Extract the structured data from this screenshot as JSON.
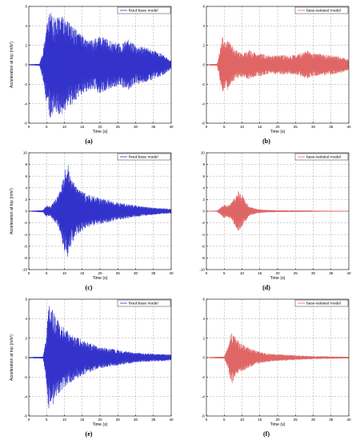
{
  "chart_data": [
    {
      "id": "a",
      "type": "line",
      "label": "(a)",
      "xlabel": "Time (s)",
      "ylabel": "Acceleration at top (m/s²)",
      "xlim": [
        0,
        40
      ],
      "ylim": [
        -6,
        6
      ],
      "xticks": [
        0,
        5,
        10,
        15,
        20,
        25,
        30,
        35,
        40
      ],
      "yticks": [
        -6,
        -4,
        -2,
        0,
        2,
        4,
        6
      ],
      "grid": true,
      "legend_position": "top-right",
      "series": [
        {
          "name": "fixed-base model",
          "color": "#3333cc",
          "envelope_time": [
            0,
            3,
            4,
            5,
            6,
            7,
            9,
            10,
            11,
            13,
            15,
            18,
            20,
            22,
            25,
            28,
            30,
            33,
            35,
            38,
            40
          ],
          "envelope_amplitude": [
            0.05,
            0.1,
            1.5,
            4.0,
            5.5,
            5.0,
            5.2,
            4.8,
            4.5,
            3.8,
            3.0,
            2.5,
            3.0,
            2.6,
            2.2,
            2.6,
            2.0,
            1.8,
            1.5,
            1.0,
            0.4
          ]
        }
      ]
    },
    {
      "id": "b",
      "type": "line",
      "label": "(b)",
      "xlabel": "Time (s)",
      "ylabel": "",
      "xlim": [
        0,
        40
      ],
      "ylim": [
        -6,
        6
      ],
      "xticks": [
        0,
        5,
        10,
        15,
        20,
        25,
        30,
        35,
        40
      ],
      "yticks": [
        -6,
        -4,
        -2,
        0,
        2,
        4,
        6
      ],
      "grid": true,
      "legend_position": "top-right",
      "series": [
        {
          "name": "base-isolated model",
          "color": "#e06666",
          "envelope_time": [
            0,
            3,
            4,
            4.5,
            5,
            6,
            8,
            10,
            12,
            15,
            18,
            20,
            25,
            28,
            30,
            35,
            38,
            40
          ],
          "envelope_amplitude": [
            0.05,
            0.1,
            2.0,
            3.0,
            2.4,
            2.6,
            1.6,
            1.2,
            1.5,
            1.2,
            0.9,
            1.0,
            1.0,
            1.5,
            1.2,
            1.0,
            0.8,
            0.5
          ]
        }
      ]
    },
    {
      "id": "c",
      "type": "line",
      "label": "(c)",
      "xlabel": "Time (s)",
      "ylabel": "Acceleration at top (m/s²)",
      "xlim": [
        0,
        40
      ],
      "ylim": [
        -10,
        10
      ],
      "xticks": [
        0,
        5,
        10,
        15,
        20,
        25,
        30,
        35,
        40
      ],
      "yticks": [
        -10,
        -8,
        -6,
        -4,
        -2,
        0,
        2,
        4,
        6,
        8,
        10
      ],
      "grid": true,
      "legend_position": "top-right",
      "series": [
        {
          "name": "fixed-base model",
          "color": "#3333cc",
          "envelope_time": [
            0,
            4,
            5,
            6,
            8,
            9,
            10,
            11,
            12,
            14,
            16,
            20,
            25,
            30,
            35,
            40
          ],
          "envelope_amplitude": [
            0.05,
            0.2,
            1.0,
            0.8,
            2.5,
            4.0,
            7.0,
            8.0,
            5.5,
            4.0,
            3.0,
            2.2,
            1.5,
            1.0,
            0.6,
            0.4
          ]
        }
      ]
    },
    {
      "id": "d",
      "type": "line",
      "label": "(d)",
      "xlabel": "Time (s)",
      "ylabel": "",
      "xlim": [
        0,
        40
      ],
      "ylim": [
        -10,
        10
      ],
      "xticks": [
        0,
        5,
        10,
        15,
        20,
        25,
        30,
        35,
        40
      ],
      "yticks": [
        -10,
        -8,
        -6,
        -4,
        -2,
        0,
        2,
        4,
        6,
        8,
        10
      ],
      "grid": true,
      "legend_position": "top-right",
      "series": [
        {
          "name": "base-isolated model",
          "color": "#e06666",
          "envelope_time": [
            0,
            3,
            4,
            5,
            6,
            7,
            8,
            9,
            10,
            11,
            12,
            14,
            16,
            20,
            30,
            40
          ],
          "envelope_amplitude": [
            0.05,
            0.1,
            0.6,
            1.2,
            1.0,
            1.5,
            2.5,
            3.5,
            2.8,
            1.8,
            0.8,
            0.4,
            0.25,
            0.15,
            0.1,
            0.05
          ]
        }
      ]
    },
    {
      "id": "e",
      "type": "line",
      "label": "(e)",
      "xlabel": "Time (s)",
      "ylabel": "Acceleration at top (m/s²)",
      "xlim": [
        0,
        40
      ],
      "ylim": [
        -6,
        6
      ],
      "xticks": [
        0,
        5,
        10,
        15,
        20,
        25,
        30,
        35,
        40
      ],
      "yticks": [
        -6,
        -4,
        -2,
        0,
        2,
        4,
        6
      ],
      "grid": true,
      "legend_position": "top-right",
      "series": [
        {
          "name": "fixed-base model",
          "color": "#3333cc",
          "envelope_time": [
            0,
            4,
            5,
            5.5,
            6,
            7,
            8,
            9,
            10,
            12,
            15,
            18,
            20,
            25,
            30,
            35,
            40
          ],
          "envelope_amplitude": [
            0.05,
            0.1,
            2.5,
            5.5,
            5.2,
            4.8,
            4.0,
            3.5,
            3.0,
            2.5,
            1.8,
            1.4,
            1.1,
            0.8,
            0.5,
            0.4,
            0.3
          ]
        }
      ]
    },
    {
      "id": "f",
      "type": "line",
      "label": "(f)",
      "xlabel": "Time (s)",
      "ylabel": "",
      "xlim": [
        0,
        40
      ],
      "ylim": [
        -6,
        6
      ],
      "xticks": [
        0,
        5,
        10,
        15,
        20,
        25,
        30,
        35,
        40
      ],
      "yticks": [
        -6,
        -4,
        -2,
        0,
        2,
        4,
        6
      ],
      "grid": true,
      "legend_position": "top-right",
      "series": [
        {
          "name": "base-isolated model",
          "color": "#e06666",
          "envelope_time": [
            0,
            5,
            6,
            7,
            8,
            9,
            10,
            12,
            14,
            16,
            18,
            20,
            25,
            30,
            40
          ],
          "envelope_amplitude": [
            0.05,
            0.1,
            1.0,
            2.8,
            2.2,
            1.8,
            1.5,
            1.0,
            0.7,
            0.5,
            0.4,
            0.35,
            0.25,
            0.15,
            0.08
          ]
        }
      ]
    }
  ]
}
